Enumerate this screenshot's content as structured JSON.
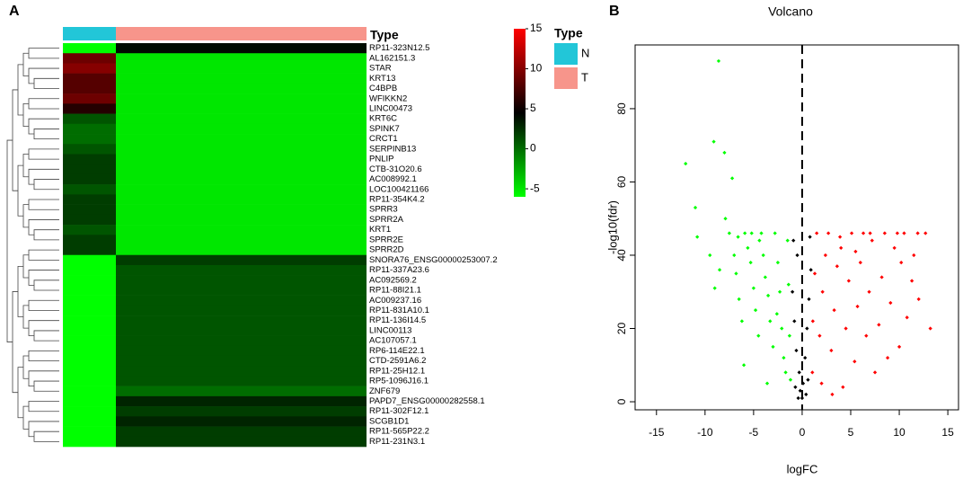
{
  "chart_data": [
    {
      "type": "heatmap",
      "panel": "A",
      "type_label": "Type",
      "legend_title": "Type",
      "groups": [
        {
          "name": "N",
          "color": "#22c6d8"
        },
        {
          "name": "T",
          "color": "#f7958b"
        }
      ],
      "rows": [
        "RP11-323N12.5",
        "AL162151.3",
        "STAR",
        "KRT13",
        "C4BPB",
        "WFIKKN2",
        "LINC00473",
        "KRT6C",
        "SPINK7",
        "CRCT1",
        "SERPINB13",
        "PNLIP",
        "CTB-31O20.6",
        "AC008992.1",
        "LOC100421166",
        "RP11-354K4.2",
        "SPRR3",
        "SPRR2A",
        "KRT1",
        "SPRR2E",
        "SPRR2D",
        "SNORA76_ENSG00000253007.2",
        "RP11-337A23.6",
        "AC092569.2",
        "RP11-88I21.1",
        "AC009237.16",
        "RP11-831A10.1",
        "RP11-136I14.5",
        "LINC00113",
        "AC107057.1",
        "RP6-114E22.1",
        "CTD-2591A6.2",
        "RP11-25H12.1",
        "RP5-1096J16.1",
        "ZNF679",
        "PAPD7_ENSG00000282558.1",
        "RP11-302F12.1",
        "SCGB1D1",
        "RP11-565P22.2",
        "RP11-231N3.1"
      ],
      "values": [
        [
          -6,
          4
        ],
        [
          9,
          -5
        ],
        [
          10,
          -5
        ],
        [
          8,
          -5
        ],
        [
          8,
          -5
        ],
        [
          9,
          -5
        ],
        [
          6,
          -5
        ],
        [
          1,
          -5
        ],
        [
          0,
          -5
        ],
        [
          0,
          -5
        ],
        [
          1,
          -5
        ],
        [
          2,
          -5
        ],
        [
          2,
          -5
        ],
        [
          2,
          -5
        ],
        [
          1,
          -5
        ],
        [
          2,
          -5
        ],
        [
          2,
          -5
        ],
        [
          2,
          -5
        ],
        [
          1,
          -5
        ],
        [
          2,
          -5
        ],
        [
          2,
          -5
        ],
        [
          -6,
          2
        ],
        [
          -6,
          1
        ],
        [
          -6,
          1
        ],
        [
          -6,
          1
        ],
        [
          -6,
          1
        ],
        [
          -6,
          1
        ],
        [
          -6,
          1
        ],
        [
          -6,
          1
        ],
        [
          -6,
          1
        ],
        [
          -6,
          1
        ],
        [
          -6,
          1
        ],
        [
          -6,
          1
        ],
        [
          -6,
          1
        ],
        [
          -6,
          0
        ],
        [
          -6,
          3
        ],
        [
          -6,
          2
        ],
        [
          -6,
          3
        ],
        [
          -6,
          2
        ],
        [
          -6,
          2
        ]
      ],
      "clim": [
        -6,
        15
      ],
      "cticks": [
        -5,
        0,
        5,
        10,
        15
      ],
      "colors": [
        "#00ff00",
        "#000000",
        "#ff0000"
      ]
    },
    {
      "type": "scatter",
      "panel": "B",
      "title": "Volcano",
      "xlabel": "logFC",
      "ylabel": "-log10(fdr)",
      "xlim": [
        -17.2,
        16.1
      ],
      "ylim": [
        -2.2,
        97.4
      ],
      "xticks": [
        -15,
        -10,
        -5,
        0,
        5,
        10,
        15
      ],
      "yticks": [
        0,
        20,
        40,
        60,
        80
      ],
      "vline": 0,
      "series": [
        {
          "color": "#00ff00",
          "x": [
            -8.6,
            -9.1,
            -8,
            -7.2,
            -12,
            -11,
            -10.8,
            -9.5,
            -9,
            -8.5,
            -7.9,
            -7.5,
            -7,
            -6.8,
            -6.5,
            -6.2,
            -5.9,
            -5.6,
            -5.3,
            -5,
            -4.8,
            -4.5,
            -4.2,
            -4,
            -3.8,
            -3.5,
            -3.3,
            -3,
            -2.8,
            -2.5,
            -2.3,
            -2.1,
            -1.9,
            -1.7,
            -1.5,
            -1.4,
            -1.3,
            -1.2,
            -6,
            -3.6,
            -4.4,
            -5.2,
            -6.6,
            -2.6
          ],
          "y": [
            93,
            71,
            68,
            61,
            65,
            53,
            45,
            40,
            31,
            36,
            50,
            46,
            40,
            35,
            28,
            22,
            46,
            42,
            38,
            31,
            25,
            18,
            46,
            40,
            34,
            29,
            22,
            15,
            46,
            38,
            30,
            20,
            12,
            8,
            44,
            32,
            18,
            6,
            10,
            5,
            44,
            46,
            45,
            24
          ]
        },
        {
          "color": "#ff0000",
          "x": [
            13.2,
            12.7,
            11.9,
            12,
            11.3,
            10.8,
            10.2,
            10,
            9.5,
            9.1,
            8.8,
            8.5,
            8.2,
            7.9,
            7.5,
            7.2,
            6.9,
            6.6,
            6.3,
            6,
            5.7,
            5.4,
            5.1,
            4.8,
            4.5,
            4.2,
            3.9,
            3.6,
            3.3,
            3,
            2.7,
            2.4,
            2.1,
            1.8,
            1.5,
            1.3,
            1.1,
            1.05,
            2,
            3.1,
            4,
            5.5,
            7,
            9.8,
            10.5,
            11.5
          ],
          "y": [
            20,
            46,
            46,
            28,
            33,
            23,
            38,
            15,
            42,
            27,
            12,
            46,
            34,
            21,
            8,
            44,
            30,
            18,
            46,
            38,
            26,
            11,
            46,
            33,
            20,
            4,
            45,
            37,
            25,
            14,
            46,
            40,
            30,
            18,
            46,
            35,
            22,
            8,
            5,
            2,
            42,
            41,
            46,
            46,
            46,
            40
          ]
        },
        {
          "color": "#000000",
          "x": [
            -1,
            -0.8,
            -0.6,
            -0.5,
            -0.3,
            -0.2,
            0,
            0.1,
            0.3,
            0.5,
            0.7,
            0.9,
            0.8,
            -0.9,
            0.4,
            -0.4,
            0.6,
            -0.7
          ],
          "y": [
            30,
            22,
            14,
            40,
            8,
            3,
            1,
            5,
            12,
            20,
            28,
            36,
            45,
            44,
            2,
            1,
            6,
            4
          ]
        }
      ]
    }
  ]
}
